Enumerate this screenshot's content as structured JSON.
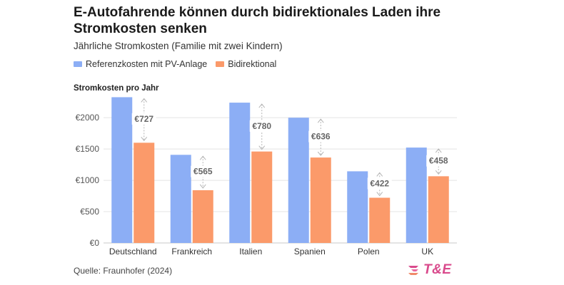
{
  "header": {
    "title": "E-Autofahrende können durch bidirektionales Laden ihre Stromkosten senken",
    "subtitle": "Jährliche Stromkosten (Familie mit zwei Kindern)"
  },
  "legend": [
    {
      "label": "Referenzkosten mit PV-Anlage",
      "color": "#8caef5"
    },
    {
      "label": "Bidirektional",
      "color": "#fb9a6a"
    }
  ],
  "footer": {
    "source": "Quelle: Fraunhofer (2024)",
    "logo_text": "T&E",
    "logo_color": "#d94a8c"
  },
  "chart_data": {
    "type": "bar",
    "ylabel": "Stromkosten pro Jahr",
    "categories": [
      "Deutschland",
      "Frankreich",
      "Italien",
      "Spanien",
      "Polen",
      "UK"
    ],
    "series": [
      {
        "name": "Referenzkosten mit PV-Anlage",
        "color": "#8caef5",
        "values": [
          2327,
          1407,
          2240,
          2000,
          1144,
          1523
        ]
      },
      {
        "name": "Bidirektional",
        "color": "#fb9a6a",
        "values": [
          1600,
          842,
          1460,
          1364,
          722,
          1065
        ]
      }
    ],
    "annotations": [
      "€727",
      "€565",
      "€780",
      "€636",
      "€422",
      "€458"
    ],
    "yticks": [
      0,
      500,
      1000,
      1500,
      2000
    ],
    "ytick_labels": [
      "€0",
      "€500",
      "€1000",
      "€1500",
      "€2000"
    ],
    "ylim": [
      0,
      2400
    ],
    "grid": true
  }
}
